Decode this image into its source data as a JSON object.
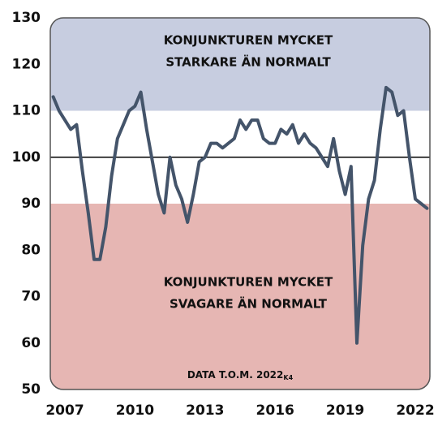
{
  "chart_data": {
    "type": "line",
    "categories": [
      null,
      null,
      "2007",
      null,
      null,
      null,
      null,
      null,
      null,
      null,
      null,
      null,
      null,
      null,
      "2010",
      null,
      null,
      null,
      null,
      null,
      null,
      null,
      null,
      null,
      null,
      null,
      "2013",
      null,
      null,
      null,
      null,
      null,
      null,
      null,
      null,
      null,
      null,
      null,
      "2016",
      null,
      null,
      null,
      null,
      null,
      null,
      null,
      null,
      null,
      null,
      null,
      "2019",
      null,
      null,
      null,
      null,
      null,
      null,
      null,
      null,
      null,
      null,
      null,
      "2022",
      null,
      null
    ],
    "series": [
      {
        "color": "#44546a",
        "values": [
          113,
          110,
          108,
          106,
          107,
          97,
          88,
          78,
          78,
          85,
          96,
          104,
          107,
          110,
          111,
          114,
          106,
          99,
          92,
          88,
          100,
          94,
          91,
          86,
          92,
          99,
          100,
          103,
          103,
          102,
          103,
          104,
          108,
          106,
          108,
          108,
          104,
          103,
          103,
          106,
          105,
          107,
          103,
          105,
          103,
          102,
          100,
          98,
          104,
          97,
          92,
          98,
          60,
          81,
          91,
          95,
          106,
          115,
          114,
          109,
          110,
          100,
          91,
          90,
          89
        ]
      }
    ],
    "ylim": [
      50,
      130
    ],
    "yticks": [
      50,
      60,
      70,
      80,
      90,
      100,
      110,
      120,
      130
    ],
    "reference_line": 100,
    "bands": [
      {
        "from": 110,
        "to": 130,
        "color": "#c7cde0"
      },
      {
        "from": 90,
        "to": 110,
        "color": "#ffffff"
      },
      {
        "from": 50,
        "to": 90,
        "color": "#e6b6b3"
      }
    ],
    "annotations": [
      {
        "lines": [
          "KONJUNKTUREN MYCKET",
          "STARKARE ÄN NORMALT"
        ]
      },
      {
        "lines": [
          "KONJUNKTUREN MYCKET",
          "SVAGARE ÄN NORMALT"
        ]
      },
      {
        "text": "DATA T.O.M. 2022",
        "subscript": "K4"
      }
    ]
  }
}
